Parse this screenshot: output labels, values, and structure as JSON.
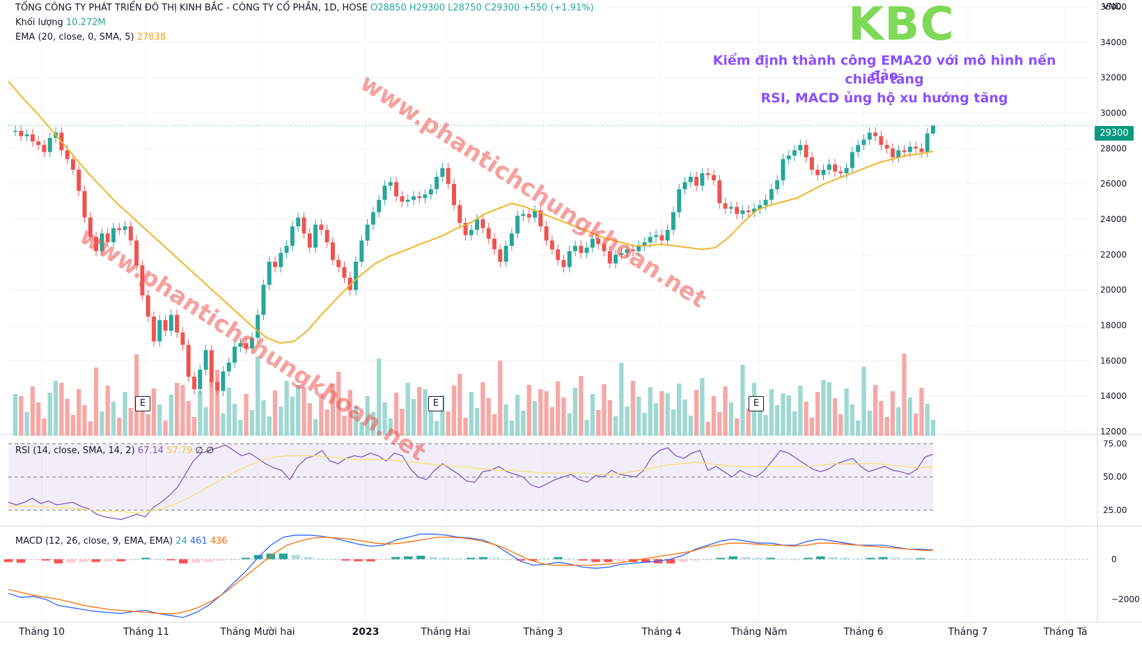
{
  "header": {
    "symbol_line": "TỔNG CÔNG TY PHÁT TRIỂN ĐÔ THỊ KINH BẮC - CÔNG TY CỔ PHẦN, 1D, HOSE",
    "open": "O28850",
    "high": "H29300",
    "low": "L28750",
    "close": "C29300",
    "change": "+550 (+1.91%)",
    "volume_label": "Khối lượng",
    "volume_value": "10.272M",
    "ema_label": "EMA (20, close, 0, SMA, 5)",
    "ema_value": "27838"
  },
  "annotation": {
    "ticker": "KBC",
    "line1": "Kiểm định thành công EMA20 với mô hình nến đảo",
    "line2": "chiều tăng",
    "line3": "RSI, MACD ủng hộ xu hướng tăng"
  },
  "watermarks": [
    "www.phantichchungkhoan.net",
    "www.phantichchungkhoan.net"
  ],
  "price_axis": {
    "unit": "VND",
    "ticks": [
      "36000",
      "34000",
      "32000",
      "30000",
      "28000",
      "26000",
      "24000",
      "22000",
      "20000",
      "18000",
      "16000",
      "14000",
      "12000"
    ],
    "last_price": "29300"
  },
  "time_axis": [
    "Tháng 10",
    "Tháng 11",
    "Tháng Mười hai",
    "2023",
    "Tháng Hai",
    "Tháng 3",
    "Tháng 4",
    "Tháng Năm",
    "Tháng 6",
    "Tháng 7",
    "Tháng Tá"
  ],
  "earnings_marker": "E",
  "rsi": {
    "label": "RSI (14, close, SMA, 14, 2)",
    "value": "67.14",
    "sma_value": "57.79",
    "extra": "∅ ∅",
    "ticks": [
      "75.00",
      "50.00",
      "25.00"
    ]
  },
  "macd": {
    "label": "MACD (12, 26, close, 9, EMA, EMA)",
    "hist_value": "24",
    "macd_value": "461",
    "signal_value": "436",
    "ticks": [
      "0",
      "−2000"
    ]
  },
  "colors": {
    "up": "#26a69a",
    "down": "#ef5350",
    "ema": "#f0b429",
    "rsi": "#7e57c2",
    "rsi_sma": "#f5e070",
    "macd": "#2962ff",
    "signal": "#ff6d00",
    "annotation": "#8a4fff",
    "ticker": "#7ed957"
  },
  "chart_data": {
    "type": "candlestick",
    "timeframe": "1D",
    "last_candle": {
      "open": 28850,
      "high": 29300,
      "low": 28750,
      "close": 29300
    },
    "price_ylim": [
      12000,
      36000
    ],
    "close_series": [
      29000,
      28700,
      28800,
      28400,
      28200,
      27800,
      28600,
      28900,
      27900,
      27400,
      26800,
      25600,
      24100,
      23000,
      22200,
      23200,
      22700,
      23500,
      23400,
      23600,
      22800,
      21400,
      19700,
      18500,
      17100,
      18300,
      17700,
      18600,
      17600,
      16900,
      15100,
      14400,
      15500,
      16600,
      14800,
      14300,
      15400,
      15900,
      16800,
      17000,
      16700,
      17300,
      18600,
      20300,
      21600,
      21300,
      22100,
      22500,
      23600,
      24100,
      23200,
      22400,
      23700,
      23400,
      22700,
      21700,
      21300,
      20700,
      20000,
      21600,
      22800,
      23700,
      24400,
      25100,
      25900,
      26100,
      25300,
      25000,
      25100,
      25300,
      25200,
      25400,
      25700,
      26400,
      26900,
      26000,
      24800,
      23800,
      23100,
      23400,
      24000,
      23500,
      22900,
      22300,
      21600,
      22500,
      23200,
      24200,
      24300,
      24100,
      24500,
      23600,
      22800,
      22300,
      21700,
      21300,
      22200,
      22500,
      22100,
      22400,
      22900,
      22600,
      22200,
      21500,
      22000,
      22100,
      22300,
      22200,
      22500,
      22700,
      23000,
      23100,
      22800,
      23400,
      24400,
      25700,
      26100,
      26400,
      25900,
      26600,
      26500,
      26200,
      24900,
      24600,
      24700,
      24300,
      24500,
      24400,
      24600,
      24800,
      25100,
      25700,
      26200,
      27400,
      27600,
      27900,
      28200,
      27500,
      26800,
      26500,
      26800,
      27100,
      26700,
      26600,
      26900,
      27800,
      28200,
      28500,
      28900,
      28700,
      28200,
      28000,
      27500,
      27900,
      27800,
      28100,
      28000,
      27800,
      28850,
      29300
    ],
    "ema20_series": [
      31800,
      30900,
      30100,
      29200,
      28300,
      27400,
      26500,
      25700,
      24900,
      24200,
      23500,
      22800,
      22100,
      21400,
      20700,
      20000,
      19300,
      18600,
      17900,
      17300,
      17000,
      17100,
      17700,
      18600,
      19400,
      20200,
      20900,
      21500,
      21900,
      22200,
      22500,
      22800,
      23100,
      23500,
      23800,
      24300,
      24600,
      24900,
      24700,
      24400,
      24100,
      23800,
      23500,
      23200,
      22900,
      22700,
      22500,
      22500,
      22600,
      22500,
      22400,
      22300,
      22400,
      23000,
      23800,
      24500,
      24800,
      25000,
      25200,
      25600,
      26000,
      26300,
      26600,
      26900,
      27200,
      27400,
      27600,
      27700,
      27838
    ],
    "volume_ylim": [
      0,
      25
    ],
    "rsi_ylim": [
      15,
      80
    ],
    "rsi_levels": [
      75,
      50,
      25
    ],
    "rsi_series": [
      31,
      29,
      31,
      34,
      30,
      32,
      29,
      30,
      31,
      28,
      26,
      22,
      20,
      19,
      18,
      20,
      22,
      20,
      27,
      31,
      36,
      42,
      52,
      62,
      68,
      70,
      72,
      74,
      70,
      66,
      68,
      64,
      60,
      57,
      55,
      48,
      58,
      64,
      66,
      70,
      62,
      60,
      64,
      66,
      65,
      68,
      66,
      62,
      68,
      66,
      56,
      50,
      48,
      55,
      60,
      56,
      52,
      47,
      46,
      54,
      55,
      58,
      54,
      52,
      50,
      44,
      42,
      45,
      48,
      50,
      52,
      48,
      46,
      51,
      50,
      55,
      52,
      51,
      50,
      55,
      65,
      70,
      72,
      66,
      64,
      68,
      70,
      55,
      58,
      54,
      50,
      55,
      52,
      50,
      55,
      62,
      70,
      68,
      64,
      60,
      56,
      54,
      56,
      60,
      62,
      64,
      58,
      54,
      56,
      58,
      55,
      54,
      52,
      56,
      65,
      67.14
    ],
    "rsi_sma_series": [
      28,
      28,
      28,
      27,
      27,
      26,
      25,
      24,
      24,
      23,
      24,
      26,
      30,
      35,
      41,
      47,
      53,
      58,
      62,
      65,
      66,
      66,
      66,
      65,
      64,
      63,
      63,
      63,
      62,
      61,
      60,
      59,
      58,
      57,
      56,
      55,
      55,
      54,
      53,
      53,
      53,
      53,
      52,
      52,
      53,
      55,
      57,
      59,
      60,
      61,
      60,
      59,
      58,
      58,
      58,
      58,
      58,
      58,
      59,
      60,
      60,
      60,
      60,
      59,
      58,
      57,
      57.79
    ],
    "macd_ylim": [
      -3000,
      1500
    ],
    "macd_series": [
      -1700,
      -1900,
      -1850,
      -2000,
      -2300,
      -2400,
      -2500,
      -2600,
      -2650,
      -2700,
      -2600,
      -2550,
      -2700,
      -2800,
      -2900,
      -2650,
      -2300,
      -1800,
      -1200,
      -600,
      100,
      700,
      1100,
      1200,
      1200,
      1150,
      1050,
      900,
      750,
      650,
      700,
      950,
      1100,
      1250,
      1250,
      1200,
      1100,
      1050,
      950,
      700,
      300,
      -100,
      -300,
      -250,
      -150,
      -250,
      -400,
      -450,
      -400,
      -250,
      -200,
      -150,
      -100,
      0,
      200,
      500,
      700,
      900,
      1000,
      900,
      800,
      800,
      700,
      700,
      900,
      1000,
      900,
      800,
      700,
      700,
      700,
      600,
      500,
      500,
      461
    ],
    "signal_series": [
      -1500,
      -1650,
      -1800,
      -1900,
      -2000,
      -2150,
      -2300,
      -2400,
      -2500,
      -2550,
      -2600,
      -2650,
      -2700,
      -2720,
      -2600,
      -2400,
      -2100,
      -1700,
      -1200,
      -700,
      -200,
      300,
      700,
      900,
      1050,
      1100,
      1050,
      1000,
      900,
      800,
      750,
      800,
      900,
      1000,
      1100,
      1100,
      1050,
      950,
      800,
      600,
      300,
      0,
      -200,
      -300,
      -300,
      -300,
      -300,
      -250,
      -200,
      -100,
      0,
      100,
      200,
      300,
      400,
      600,
      700,
      800,
      800,
      750,
      700,
      700,
      650,
      700,
      800,
      800,
      750,
      700,
      650,
      600,
      550,
      500,
      450,
      436
    ]
  }
}
